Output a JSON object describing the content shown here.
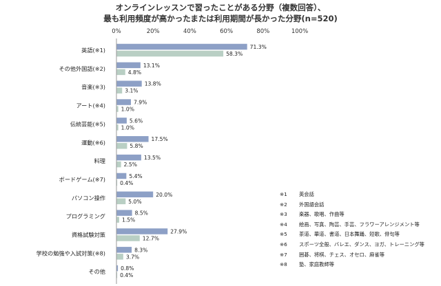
{
  "chart_data": {
    "type": "bar",
    "orientation": "horizontal",
    "title_lines": [
      "オンラインレッスンで習ったことがある分野（複数回答）、",
      "最も利用頻度が高かったまたは利用期間が長かった分野(n=520)"
    ],
    "x_ticks": [
      "0%",
      "20%",
      "40%",
      "60%",
      "80%",
      "100%"
    ],
    "xlim": [
      0,
      100
    ],
    "categories": [
      "英語(※1)",
      "その他外国語(※2)",
      "音楽(※3)",
      "アート(※4)",
      "伝統芸能(※5)",
      "運動(※6)",
      "料理",
      "ボードゲーム(※7)",
      "パソコン操作",
      "プログラミング",
      "資格試験対策",
      "学校の勉強や入試対策(※8)",
      "その他"
    ],
    "series": [
      {
        "color": "#8da0c6",
        "values": [
          71.3,
          13.1,
          13.8,
          7.9,
          5.6,
          17.5,
          13.5,
          5.4,
          20.0,
          8.5,
          27.9,
          8.3,
          0.8
        ],
        "labels": [
          "71.3%",
          "13.1%",
          "13.8%",
          "7.9%",
          "5.6%",
          "17.5%",
          "13.5%",
          "5.4%",
          "20.0%",
          "8.5%",
          "27.9%",
          "8.3%",
          "0.8%"
        ]
      },
      {
        "color": "#b9cfc4",
        "values": [
          58.3,
          4.8,
          3.1,
          1.0,
          1.0,
          5.8,
          2.5,
          0.4,
          5.0,
          1.5,
          12.7,
          3.7,
          0.4
        ],
        "labels": [
          "58.3%",
          "4.8%",
          "3.1%",
          "1.0%",
          "1.0%",
          "5.8%",
          "2.5%",
          "0.4%",
          "5.0%",
          "1.5%",
          "12.7%",
          "3.7%",
          "0.4%"
        ]
      }
    ],
    "grid": false,
    "legend": "none",
    "notes": [
      {
        "key": "※1",
        "text": "英会話"
      },
      {
        "key": "※2",
        "text": "外国語会話"
      },
      {
        "key": "※3",
        "text": "楽器、歌唱、作曲等"
      },
      {
        "key": "※4",
        "text": "絵画、写真、陶芸、手芸、フラワーアレンジメント等"
      },
      {
        "key": "※5",
        "text": "茶道、華道、書道、日本舞踊、短歌、俳句等"
      },
      {
        "key": "※6",
        "text": "スポーツ全般、バレエ、ダンス、ヨガ、トレーニング等"
      },
      {
        "key": "※7",
        "text": "囲碁、将棋、チェス、オセロ、麻雀等"
      },
      {
        "key": "※8",
        "text": "塾、家庭教師等"
      }
    ]
  }
}
